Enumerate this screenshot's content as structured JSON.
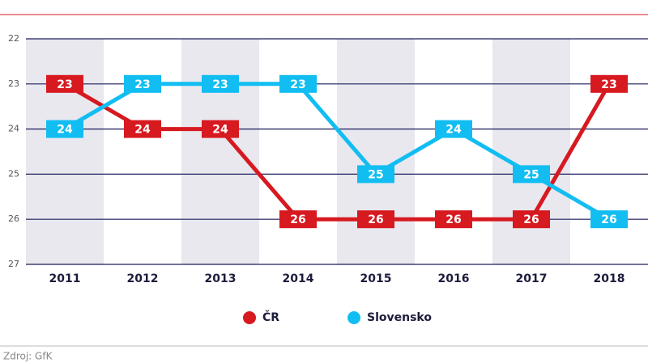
{
  "chart_data": {
    "type": "line",
    "categories": [
      "2011",
      "2012",
      "2013",
      "2014",
      "2015",
      "2016",
      "2017",
      "2018"
    ],
    "series": [
      {
        "name": "ČR",
        "color": "#d71920",
        "values": [
          23,
          24,
          24,
          26,
          26,
          26,
          26,
          23
        ]
      },
      {
        "name": "Slovensko",
        "color": "#12bdf2",
        "values": [
          24,
          23,
          23,
          23,
          25,
          24,
          25,
          26
        ]
      }
    ],
    "ylim": [
      27,
      22
    ],
    "yticks": [
      22,
      23,
      24,
      25,
      26,
      27
    ],
    "grid": true,
    "legend": "bottom",
    "source": "Zdroj: GfK"
  }
}
